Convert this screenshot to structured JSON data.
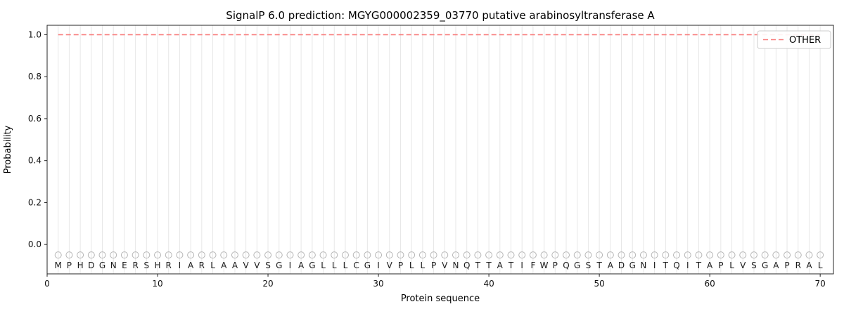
{
  "figure": {
    "title": "SignalP 6.0 prediction: MGYG000002359_03770 putative arabinosyltransferase A",
    "xlabel": "Protein sequence",
    "ylabel": "Probability"
  },
  "legend": {
    "position": "upper right",
    "entries": [
      {
        "label": "OTHER",
        "color": "#f87b7b",
        "linestyle": "dashed"
      }
    ]
  },
  "chart_data": {
    "type": "line",
    "title": "SignalP 6.0 prediction: MGYG000002359_03770 putative arabinosyltransferase A",
    "xlabel": "Protein sequence",
    "ylabel": "Probability",
    "xlim": [
      0,
      71.2
    ],
    "ylim": [
      -0.14,
      1.045
    ],
    "xticks": [
      0,
      10,
      20,
      30,
      40,
      50,
      60,
      70
    ],
    "xticklabels": [
      "0",
      "10",
      "20",
      "30",
      "40",
      "50",
      "60",
      "70"
    ],
    "yticks": [
      0.0,
      0.2,
      0.4,
      0.6,
      0.8,
      1.0
    ],
    "yticklabels": [
      "0.0",
      "0.2",
      "0.4",
      "0.6",
      "0.8",
      "1.0"
    ],
    "grid": "vertical-line-per-residue",
    "grid_color": "#e7e7e7",
    "spine_color": "#262626",
    "legend_position": "upper right",
    "residues": "MPHDGNERSHRIARLAAVVSGIAGLLLCGIVPLLPVNQTTATIFWPQGSTADGNITQITAPLVSGAPRAL",
    "residue_row_y": -0.1,
    "marker_row": {
      "y": -0.05,
      "shape": "open-circle",
      "color": "#b5b5b5"
    },
    "series": [
      {
        "name": "OTHER",
        "color": "#f87b7b",
        "linestyle": "dashed",
        "x": [
          1,
          2,
          3,
          4,
          5,
          6,
          7,
          8,
          9,
          10,
          11,
          12,
          13,
          14,
          15,
          16,
          17,
          18,
          19,
          20,
          21,
          22,
          23,
          24,
          25,
          26,
          27,
          28,
          29,
          30,
          31,
          32,
          33,
          34,
          35,
          36,
          37,
          38,
          39,
          40,
          41,
          42,
          43,
          44,
          45,
          46,
          47,
          48,
          49,
          50,
          51,
          52,
          53,
          54,
          55,
          56,
          57,
          58,
          59,
          60,
          61,
          62,
          63,
          64,
          65,
          66,
          67,
          68,
          69,
          70
        ],
        "values": [
          1.0,
          1.0,
          1.0,
          1.0,
          1.0,
          1.0,
          1.0,
          1.0,
          1.0,
          1.0,
          1.0,
          1.0,
          1.0,
          1.0,
          1.0,
          1.0,
          1.0,
          1.0,
          1.0,
          1.0,
          1.0,
          1.0,
          1.0,
          1.0,
          1.0,
          1.0,
          1.0,
          1.0,
          1.0,
          1.0,
          1.0,
          1.0,
          1.0,
          1.0,
          1.0,
          1.0,
          1.0,
          1.0,
          1.0,
          1.0,
          1.0,
          1.0,
          1.0,
          1.0,
          1.0,
          1.0,
          1.0,
          1.0,
          1.0,
          1.0,
          1.0,
          1.0,
          1.0,
          1.0,
          1.0,
          1.0,
          1.0,
          1.0,
          1.0,
          1.0,
          1.0,
          1.0,
          1.0,
          1.0,
          1.0,
          1.0,
          1.0,
          1.0,
          1.0,
          1.0
        ]
      }
    ]
  }
}
